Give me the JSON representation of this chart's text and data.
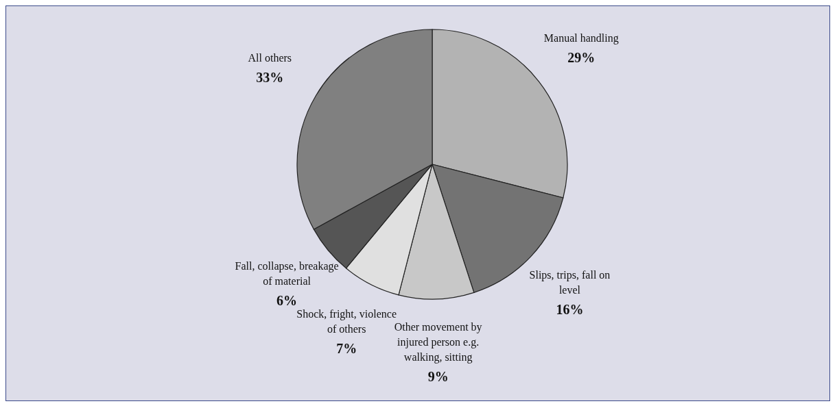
{
  "chart_data": {
    "type": "pie",
    "categories": [
      "Manual handling",
      "Slips, trips, fall on level",
      "Other movement by injured person e.g. walking, sitting",
      "Shock, fright, violence of others",
      "Fall, collapse, breakage of material",
      "All others"
    ],
    "values": [
      29,
      16,
      9,
      7,
      6,
      33
    ],
    "colors": [
      "#b3b3b3",
      "#737373",
      "#c8c8c8",
      "#e0e0e0",
      "#555555",
      "#808080"
    ],
    "value_labels": [
      "29%",
      "16%",
      "9%",
      "7%",
      "6%",
      "33%"
    ]
  }
}
